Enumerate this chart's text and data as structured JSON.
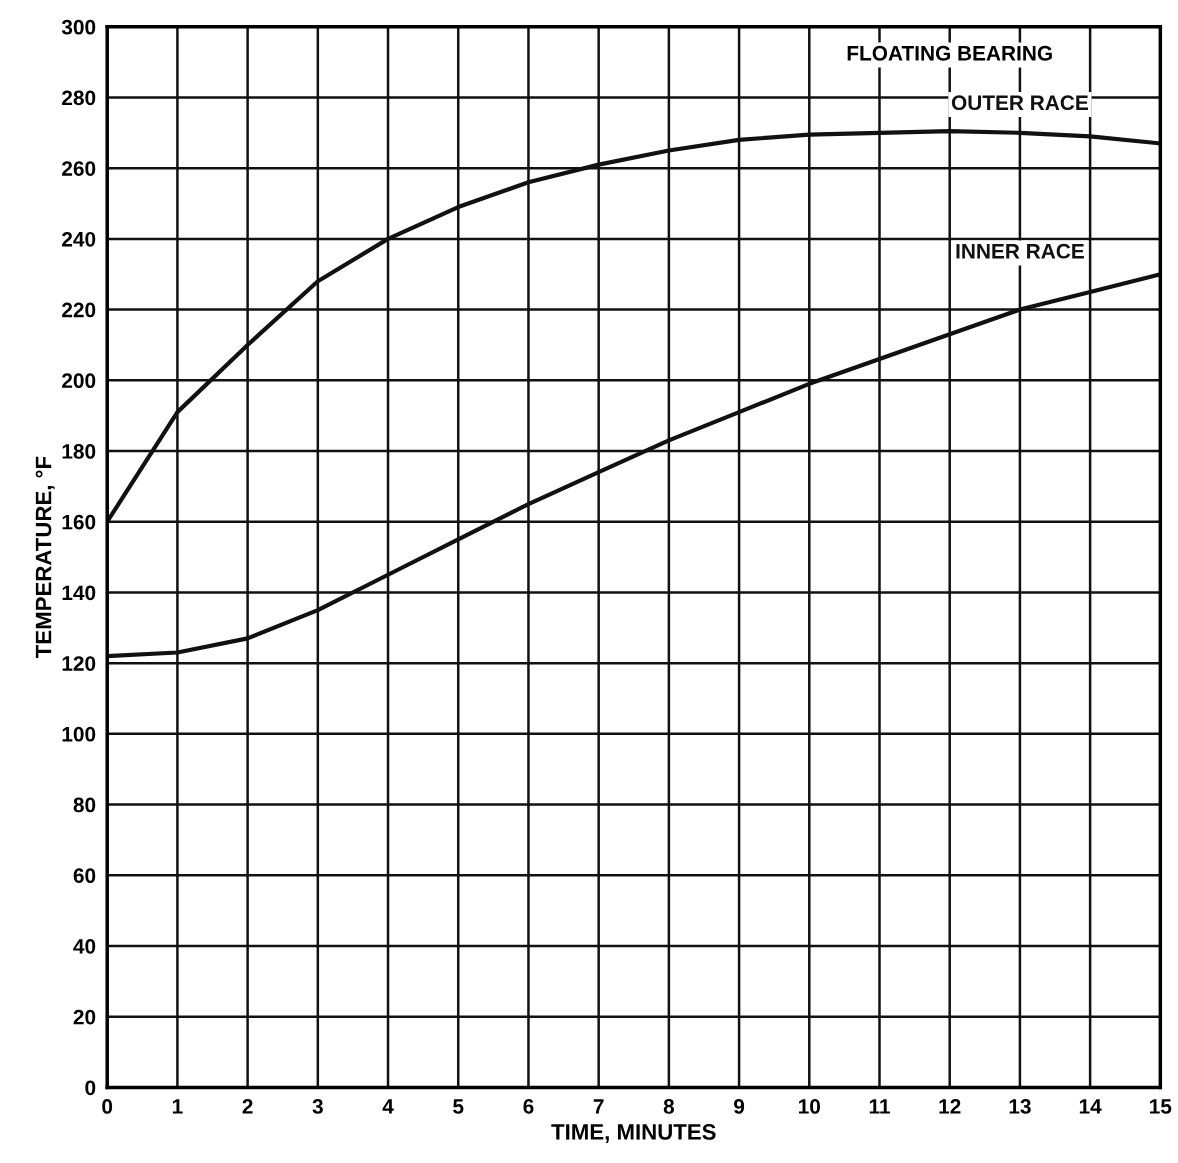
{
  "chart_data": {
    "type": "line",
    "xlabel": "TIME, MINUTES",
    "ylabel": "TEMPERATURE, °F",
    "annotations": [
      "FLOATING BEARING"
    ],
    "x": [
      0,
      1,
      2,
      3,
      4,
      5,
      6,
      7,
      8,
      9,
      10,
      11,
      12,
      13,
      14,
      15
    ],
    "series": [
      {
        "name": "OUTER RACE",
        "color": "#111111",
        "values": [
          160,
          191,
          210,
          228,
          240,
          249,
          256,
          261,
          265,
          268,
          269.5,
          270,
          270.5,
          270,
          269,
          267
        ]
      },
      {
        "name": "INNER RACE",
        "color": "#111111",
        "values": [
          122,
          123,
          127,
          135,
          145,
          155,
          165,
          174,
          183,
          191,
          199,
          206,
          213,
          220,
          225,
          230
        ]
      }
    ],
    "xlim": [
      0,
      15
    ],
    "ylim": [
      0,
      300
    ],
    "xticks": [
      0,
      1,
      2,
      3,
      4,
      5,
      6,
      7,
      8,
      9,
      10,
      11,
      12,
      13,
      14,
      15
    ],
    "yticks": [
      0,
      20,
      40,
      60,
      80,
      100,
      120,
      140,
      160,
      180,
      200,
      220,
      240,
      260,
      280,
      300
    ],
    "grid": true,
    "legend": false,
    "marker": "none",
    "line_style": "solid"
  }
}
